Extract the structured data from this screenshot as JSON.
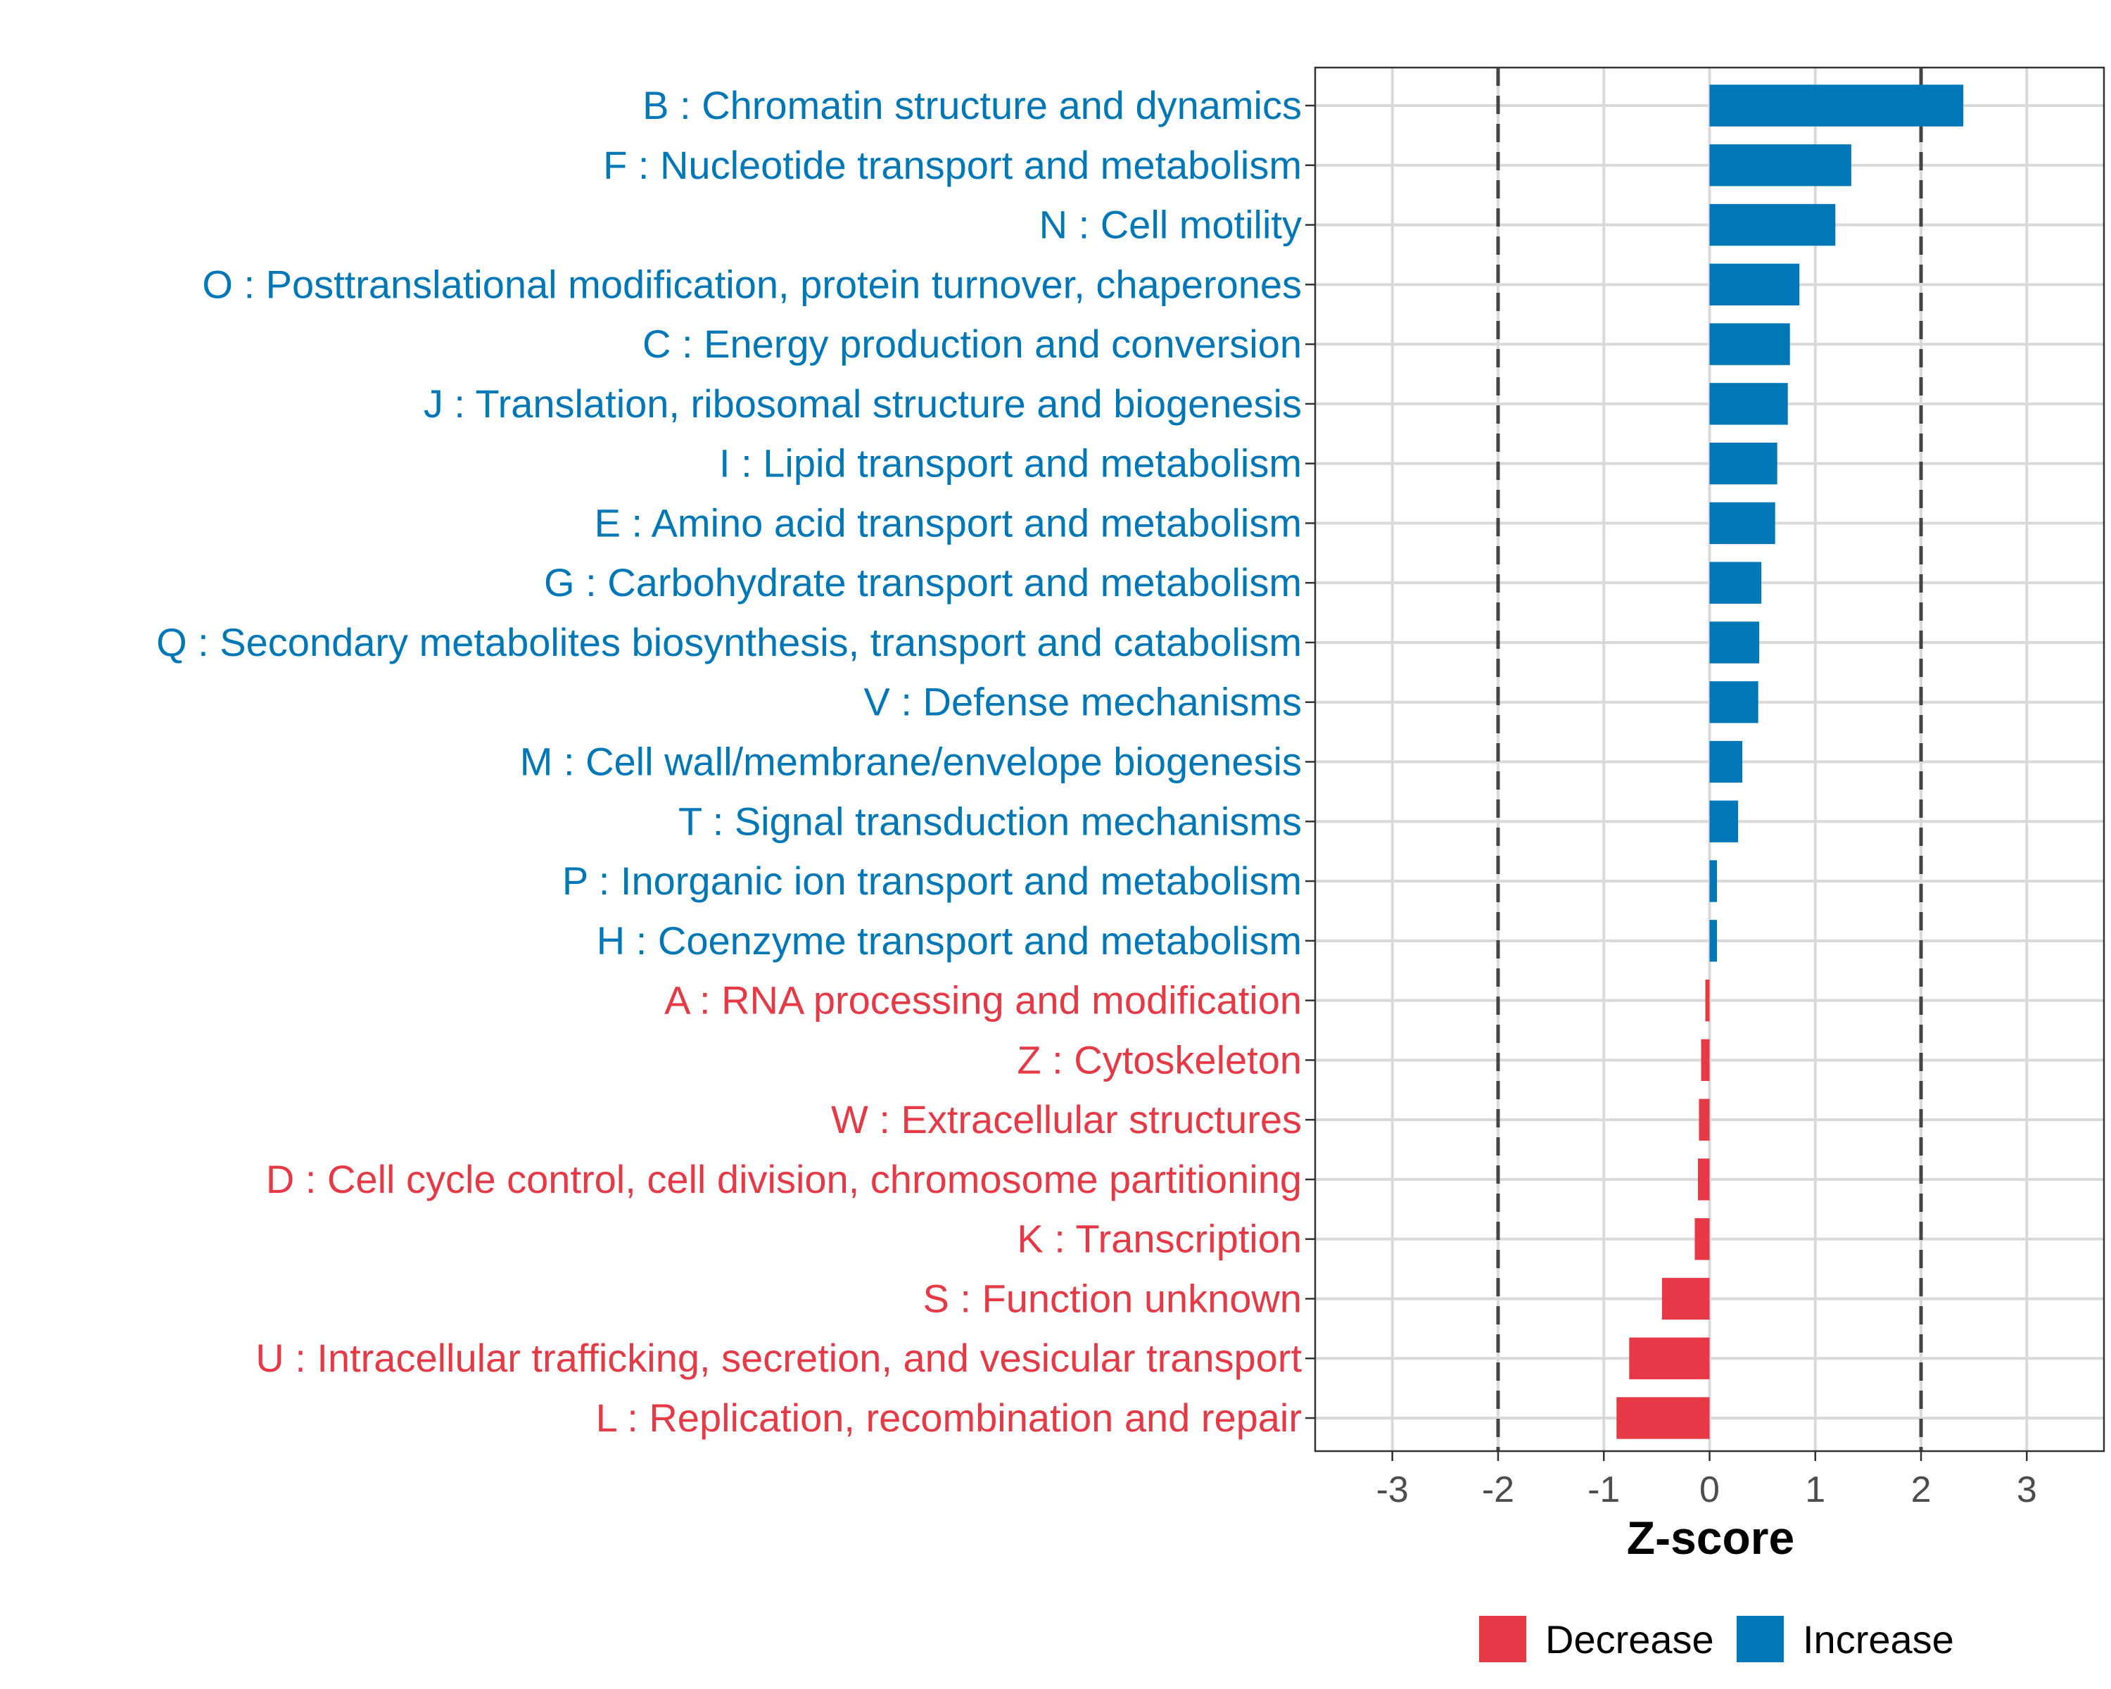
{
  "chart_data": {
    "type": "bar",
    "orientation": "horizontal",
    "title": "",
    "xlabel": "Z-score",
    "ylabel": "",
    "xlim": [
      -3.73,
      3.73
    ],
    "xticks": [
      -3,
      -2,
      -1,
      0,
      1,
      2,
      3
    ],
    "reference_lines": [
      -2,
      2
    ],
    "grid": true,
    "legend_position": "bottom",
    "legend": [
      {
        "name": "Decrease",
        "color": "#E63946"
      },
      {
        "name": "Increase",
        "color": "#0077B6"
      }
    ],
    "categories": [
      "B : Chromatin structure and dynamics",
      "F : Nucleotide transport and metabolism",
      "N : Cell motility",
      "O : Posttranslational modification, protein turnover, chaperones",
      "C : Energy production and conversion",
      "J : Translation, ribosomal structure and biogenesis",
      "I : Lipid transport and metabolism",
      "E : Amino acid transport and metabolism",
      "G : Carbohydrate transport and metabolism",
      "Q : Secondary metabolites biosynthesis, transport and catabolism",
      "V : Defense mechanisms",
      "M : Cell wall/membrane/envelope biogenesis",
      "T : Signal transduction mechanisms",
      "P : Inorganic ion transport and metabolism",
      "H : Coenzyme transport and metabolism",
      "A : RNA processing and modification",
      "Z : Cytoskeleton",
      "W : Extracellular structures",
      "D : Cell cycle control, cell division, chromosome partitioning",
      "K : Transcription",
      "S : Function unknown",
      "U : Intracellular trafficking, secretion, and vesicular transport",
      "L : Replication, recombination and repair"
    ],
    "values": [
      2.4,
      1.34,
      1.19,
      0.85,
      0.76,
      0.74,
      0.64,
      0.62,
      0.49,
      0.47,
      0.46,
      0.31,
      0.27,
      0.07,
      0.07,
      -0.04,
      -0.08,
      -0.1,
      -0.11,
      -0.14,
      -0.45,
      -0.76,
      -0.88
    ]
  }
}
